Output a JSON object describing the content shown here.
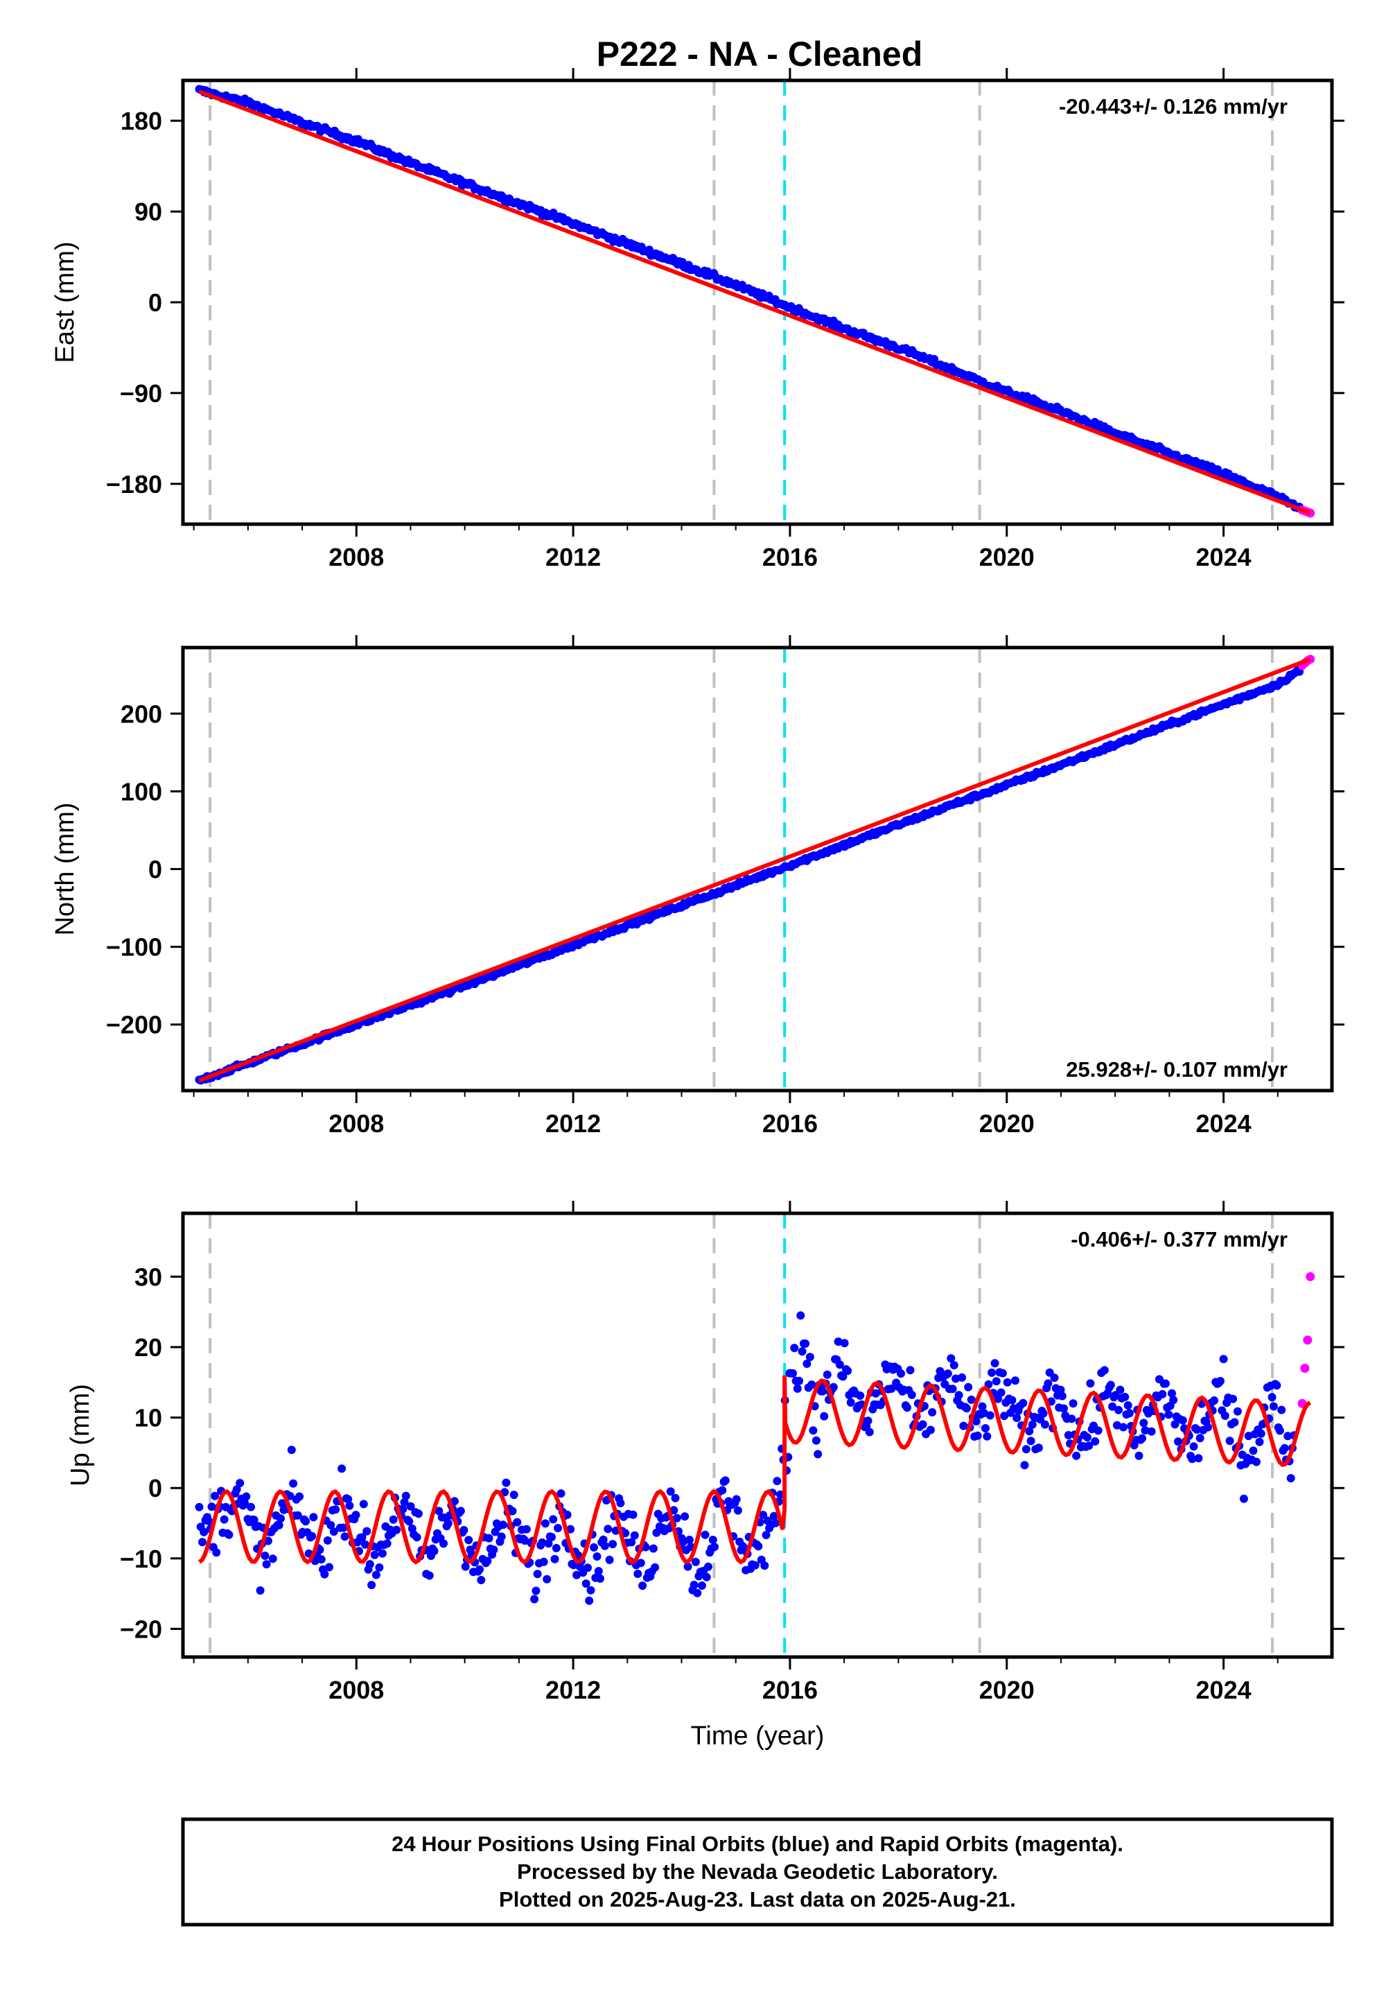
{
  "title": "P222  - NA - Cleaned",
  "colors": {
    "final_orbits": "#0000ff",
    "rapid_orbits": "#ff00ff",
    "model": "#ff0000",
    "event_gray": "#c0c0c0",
    "event_cyan": "#00e5ee"
  },
  "footer": {
    "line1": "24 Hour Positions Using Final Orbits (blue) and Rapid Orbits (magenta).",
    "line2": "Processed by the Nevada Geodetic Laboratory.",
    "line3": "Plotted on 2025-Aug-23. Last data on 2025-Aug-21."
  },
  "chart_data": [
    {
      "type": "scatter",
      "component": "east",
      "ylabel": "East (mm)",
      "xlabel": "",
      "rate_text": "-20.443+/- 0.126 mm/yr",
      "rate_position": "top-right",
      "xlim": [
        2004.8,
        2026.0
      ],
      "ylim": [
        -220,
        220
      ],
      "xticks": [
        2008,
        2012,
        2016,
        2020,
        2024
      ],
      "yticks": [
        180,
        90,
        0,
        -90,
        -180
      ],
      "ytick_labels": [
        "180",
        "90",
        "0",
        "−90",
        "−180"
      ],
      "event_lines": [
        {
          "x": 2005.3,
          "color": "gray"
        },
        {
          "x": 2014.6,
          "color": "gray"
        },
        {
          "x": 2015.9,
          "color": "cyan"
        },
        {
          "x": 2019.5,
          "color": "gray"
        },
        {
          "x": 2024.9,
          "color": "gray"
        }
      ],
      "series": [
        {
          "orbit": "final",
          "x": [
            2005.1,
            2006.0,
            2007.0,
            2008.0,
            2009.0,
            2010.0,
            2011.0,
            2012.0,
            2013.0,
            2014.0,
            2015.0,
            2016.0,
            2017.0,
            2018.0,
            2019.0,
            2020.0,
            2021.0,
            2022.0,
            2023.0,
            2024.0,
            2025.0,
            2025.4
          ],
          "y": [
            210,
            198,
            178,
            160,
            138,
            118,
            98,
            78,
            58,
            38,
            17,
            -5,
            -26,
            -45,
            -67,
            -89,
            -108,
            -130,
            -150,
            -170,
            -193,
            -205
          ]
        },
        {
          "orbit": "rapid",
          "x": [
            2025.45,
            2025.5,
            2025.55,
            2025.6
          ],
          "y": [
            -206,
            -207,
            -208,
            -209
          ]
        }
      ],
      "model": {
        "x": [
          2005.1,
          2025.6
        ],
        "y": [
          209,
          -209
        ]
      }
    },
    {
      "type": "scatter",
      "component": "north",
      "ylabel": "North (mm)",
      "xlabel": "",
      "rate_text": "25.928+/- 0.107 mm/yr",
      "rate_position": "bottom-right",
      "xlim": [
        2004.8,
        2026.0
      ],
      "ylim": [
        -285,
        285
      ],
      "xticks": [
        2008,
        2012,
        2016,
        2020,
        2024
      ],
      "yticks": [
        200,
        100,
        0,
        -100,
        -200
      ],
      "ytick_labels": [
        "200",
        "100",
        "0",
        "−100",
        "−200"
      ],
      "event_lines": [
        {
          "x": 2005.3,
          "color": "gray"
        },
        {
          "x": 2014.6,
          "color": "gray"
        },
        {
          "x": 2015.9,
          "color": "cyan"
        },
        {
          "x": 2019.5,
          "color": "gray"
        },
        {
          "x": 2024.9,
          "color": "gray"
        }
      ],
      "series": [
        {
          "orbit": "final",
          "x": [
            2005.1,
            2006.0,
            2007.0,
            2008.0,
            2009.0,
            2010.0,
            2011.0,
            2012.0,
            2013.0,
            2014.0,
            2015.0,
            2016.0,
            2017.0,
            2018.0,
            2019.0,
            2020.0,
            2021.0,
            2022.0,
            2023.0,
            2024.0,
            2025.0,
            2025.4
          ],
          "y": [
            -272,
            -250,
            -225,
            -200,
            -175,
            -150,
            -124,
            -98,
            -72,
            -47,
            -21,
            5,
            31,
            57,
            83,
            108,
            134,
            160,
            186,
            212,
            238,
            256
          ]
        },
        {
          "orbit": "rapid",
          "x": [
            2025.45,
            2025.5,
            2025.55,
            2025.6
          ],
          "y": [
            262,
            265,
            268,
            270
          ]
        }
      ],
      "model": {
        "x": [
          2005.1,
          2025.6
        ],
        "y": [
          -272,
          270
        ]
      }
    },
    {
      "type": "scatter",
      "component": "up",
      "ylabel": "Up (mm)",
      "xlabel": "Time (year)",
      "rate_text": "-0.406+/- 0.377 mm/yr",
      "rate_position": "top-right",
      "xlim": [
        2004.8,
        2026.0
      ],
      "ylim": [
        -24,
        39
      ],
      "xticks": [
        2008,
        2012,
        2016,
        2020,
        2024
      ],
      "yticks": [
        30,
        20,
        10,
        0,
        -10,
        -20
      ],
      "ytick_labels": [
        "30",
        "20",
        "10",
        "0",
        "−10",
        "−20"
      ],
      "event_lines": [
        {
          "x": 2005.3,
          "color": "gray"
        },
        {
          "x": 2014.6,
          "color": "gray"
        },
        {
          "x": 2015.9,
          "color": "cyan"
        },
        {
          "x": 2019.5,
          "color": "gray"
        },
        {
          "x": 2024.9,
          "color": "gray"
        }
      ],
      "offset": {
        "x": 2015.9,
        "before": -3,
        "after": 16
      },
      "series": [
        {
          "orbit": "final",
          "x": [
            2005.1,
            2005.8,
            2006.3,
            2006.8,
            2007.3,
            2007.8,
            2008.3,
            2008.8,
            2009.3,
            2009.8,
            2010.3,
            2010.8,
            2011.3,
            2011.8,
            2012.3,
            2012.8,
            2013.3,
            2013.8,
            2014.3,
            2014.8,
            2015.3,
            2015.85,
            2016.1,
            2016.5,
            2016.9,
            2017.4,
            2017.9,
            2018.4,
            2018.9,
            2019.4,
            2019.9,
            2020.4,
            2020.9,
            2021.4,
            2021.9,
            2022.4,
            2022.9,
            2023.4,
            2023.9,
            2024.4,
            2024.9,
            2025.3
          ],
          "y": [
            -7,
            -1,
            -10,
            -1,
            -10,
            -1,
            -11,
            -2,
            -11,
            -2,
            -12,
            -3,
            -12,
            -3,
            -12,
            -3,
            -12,
            -1,
            -13,
            -1,
            -10,
            -2,
            16,
            10,
            18,
            9,
            17,
            8,
            17,
            8,
            15,
            6,
            15,
            6,
            15,
            6,
            14,
            5,
            14,
            4,
            13,
            3
          ]
        },
        {
          "orbit": "rapid",
          "x": [
            2025.45,
            2025.5,
            2025.55,
            2025.6
          ],
          "y": [
            12,
            17,
            21,
            30
          ]
        }
      ],
      "model": {
        "x": [
          2005.1,
          2025.6
        ],
        "y": [
          -7,
          9
        ]
      }
    }
  ]
}
